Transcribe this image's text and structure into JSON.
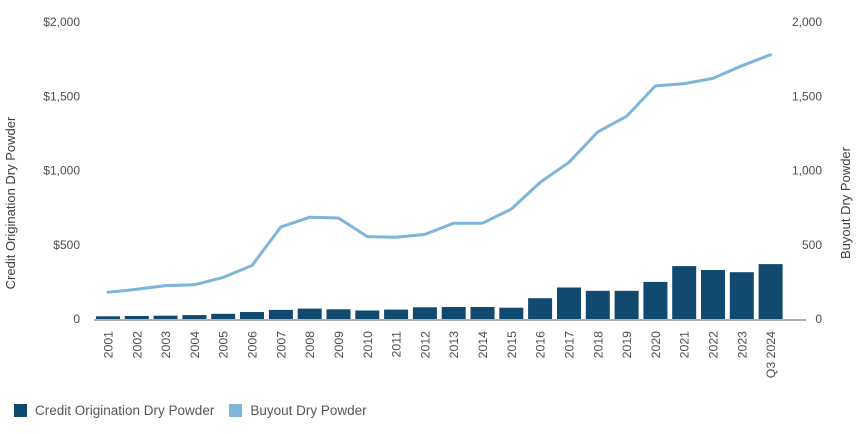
{
  "chart_data": {
    "type": "combo",
    "title": "",
    "categories": [
      "2001",
      "2002",
      "2003",
      "2004",
      "2005",
      "2006",
      "2007",
      "2008",
      "2009",
      "2010",
      "2011",
      "2012",
      "2013",
      "2014",
      "2015",
      "2016",
      "2017",
      "2018",
      "2019",
      "2020",
      "2021",
      "2022",
      "2023",
      "Q3 2024"
    ],
    "series": [
      {
        "name": "Credit Origination Dry Powder",
        "type": "bar",
        "axis": "left",
        "color": "#114a6e",
        "values": [
          18,
          20,
          22,
          26,
          35,
          47,
          61,
          70,
          65,
          57,
          63,
          79,
          81,
          81,
          76,
          140,
          212,
          190,
          190,
          250,
          356,
          330,
          315,
          370
        ]
      },
      {
        "name": "Buyout Dry Powder",
        "type": "line",
        "axis": "right",
        "color": "#7eb5d8",
        "values": [
          180,
          200,
          225,
          230,
          280,
          360,
          620,
          685,
          680,
          555,
          550,
          570,
          645,
          645,
          740,
          920,
          1055,
          1260,
          1365,
          1570,
          1585,
          1620,
          1705,
          1780
        ]
      }
    ],
    "left_axis": {
      "title": "Credit Origination Dry Powder",
      "tick_labels": [
        "0",
        "$500",
        "$1,000",
        "$1,500",
        "$2,000"
      ],
      "min": 0,
      "max": 2000
    },
    "right_axis": {
      "title": "Buyout Dry Powder",
      "tick_labels": [
        "0",
        "500",
        "1,000",
        "1,500",
        "2,000"
      ],
      "min": 0,
      "max": 2000
    },
    "grid": false,
    "legend": {
      "position": "bottom-left",
      "items": [
        "Credit Origination Dry Powder",
        "Buyout Dry Powder"
      ]
    },
    "colors": {
      "bar": "#114a6e",
      "line": "#7eb5d8",
      "axis_line": "#a6a6a6",
      "text": "#4d4d4d"
    }
  }
}
